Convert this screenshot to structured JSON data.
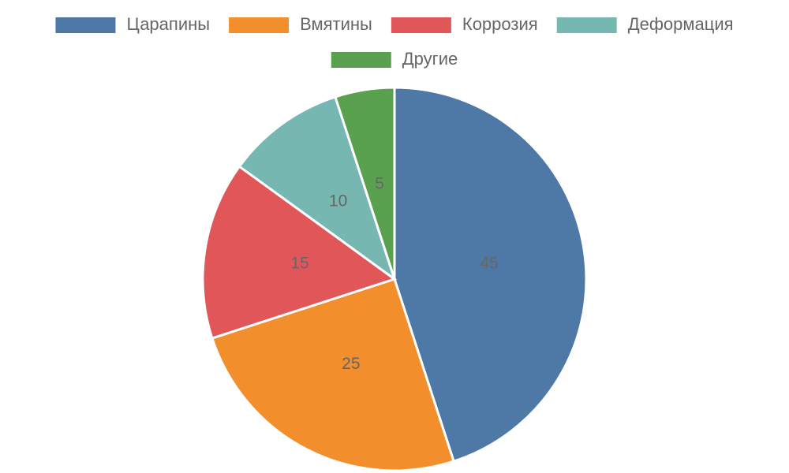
{
  "chart_data": {
    "type": "pie",
    "categories": [
      "Царапины",
      "Вмятины",
      "Коррозия",
      "Деформация",
      "Другие"
    ],
    "values": [
      45,
      25,
      15,
      10,
      5
    ],
    "colors": [
      "#4e79a7",
      "#f28e2b",
      "#e15759",
      "#76b7b2",
      "#59a14f"
    ],
    "legend": "top"
  }
}
